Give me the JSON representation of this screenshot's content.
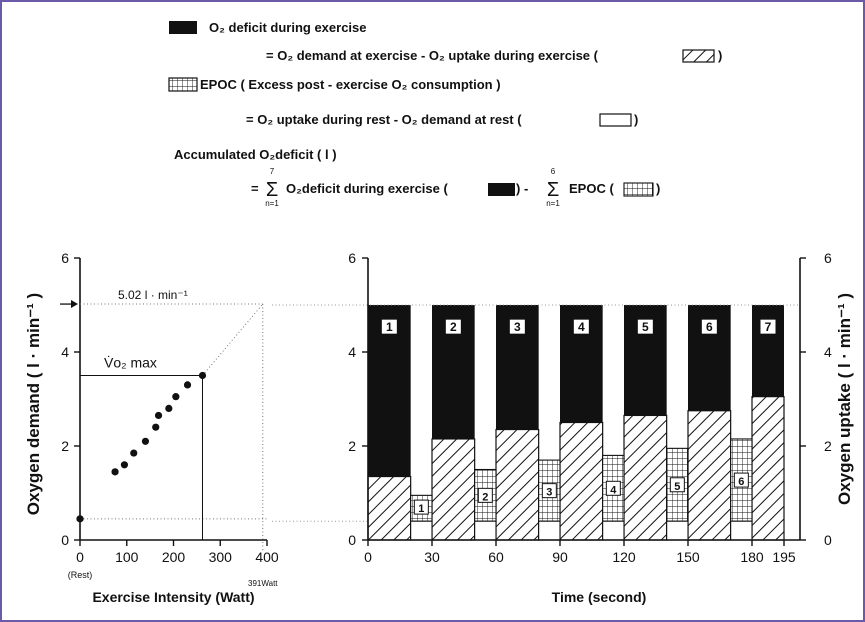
{
  "legend": {
    "deficit_title": "O₂ deficit  during  exercise",
    "deficit_eq": "= O₂ demand at exercise   -  O₂ uptake during exercise  (",
    "epoc_title": "EPOC ( Excess post - exercise  O₂ consumption )",
    "epoc_eq": "= O₂ uptake during rest -  O₂ demand at rest    (",
    "acc_title": "Accumulated O₂deficit   ( l )",
    "acc_eq_a": "=",
    "sum1_top": "7",
    "sum1_bottom": "n=1",
    "acc_eq_b": "O₂deficit during exercise (",
    "acc_eq_c": ")   -",
    "sum2_top": "6",
    "sum2_bottom": "n=1",
    "acc_eq_d": "EPOC (",
    "acc_eq_e": ")",
    "close_paren": ")"
  },
  "colors": {
    "frame": "#6a5aa8",
    "ink": "#111111",
    "grid": "#777777"
  },
  "chart_data": [
    {
      "type": "scatter",
      "xlabel": "Exercise Intensity  (Watt)",
      "ylabel": "Oxygen  demand   ( l · min⁻¹ )",
      "xlim": [
        0,
        400
      ],
      "ylim": [
        0,
        6
      ],
      "xticks": [
        0,
        100,
        200,
        300,
        400
      ],
      "xtick_labels": [
        "0",
        "100",
        "200",
        "300",
        "400"
      ],
      "yticks": [
        0,
        2,
        4,
        6
      ],
      "ytick_labels": [
        "0",
        "2",
        "4",
        "6"
      ],
      "rest_label": "(Rest)",
      "max_label": "391Watt",
      "vo2max_label": "V̇o₂ max",
      "demand_label": "5.02 l · min⁻¹",
      "points": [
        {
          "x": 0,
          "y": 0.45
        },
        {
          "x": 75,
          "y": 1.45
        },
        {
          "x": 95,
          "y": 1.6
        },
        {
          "x": 115,
          "y": 1.85
        },
        {
          "x": 140,
          "y": 2.1
        },
        {
          "x": 162,
          "y": 2.4
        },
        {
          "x": 168,
          "y": 2.65
        },
        {
          "x": 190,
          "y": 2.8
        },
        {
          "x": 205,
          "y": 3.05
        },
        {
          "x": 230,
          "y": 3.3
        },
        {
          "x": 262,
          "y": 3.5
        }
      ],
      "extrapolation": [
        [
          262,
          3.5
        ],
        [
          391,
          5.02
        ]
      ],
      "vo2max": {
        "x": 262,
        "y": 3.5
      },
      "demand": {
        "x": 391,
        "y": 5.02
      },
      "rest_demand": 0.45
    },
    {
      "type": "bar",
      "xlabel": "Time  (second)",
      "ylabel": "Oxygen   uptake   ( l · min⁻¹ )",
      "xlim": [
        0,
        195
      ],
      "ylim": [
        0,
        6
      ],
      "xticks": [
        0,
        30,
        60,
        90,
        120,
        150,
        180,
        195
      ],
      "xtick_labels": [
        "0",
        "30",
        "60",
        "90",
        "120",
        "150",
        "180",
        "195"
      ],
      "yticks": [
        0,
        2,
        4,
        6
      ],
      "ytick_labels": [
        "0",
        "2",
        "4",
        "6"
      ],
      "demand_level": 5.0,
      "rest_level": 0.4,
      "exercise_bouts": [
        {
          "label": "1",
          "start": 0,
          "end": 20,
          "uptake": 1.35
        },
        {
          "label": "2",
          "start": 30,
          "end": 50,
          "uptake": 2.15
        },
        {
          "label": "3",
          "start": 60,
          "end": 80,
          "uptake": 2.35
        },
        {
          "label": "4",
          "start": 90,
          "end": 110,
          "uptake": 2.5
        },
        {
          "label": "5",
          "start": 120,
          "end": 140,
          "uptake": 2.65
        },
        {
          "label": "6",
          "start": 150,
          "end": 170,
          "uptake": 2.75
        },
        {
          "label": "7",
          "start": 180,
          "end": 195,
          "uptake": 3.05
        }
      ],
      "rest_bouts": [
        {
          "label": "1",
          "start": 20,
          "end": 30,
          "uptake": 0.95
        },
        {
          "label": "2",
          "start": 50,
          "end": 60,
          "uptake": 1.5
        },
        {
          "label": "3",
          "start": 80,
          "end": 90,
          "uptake": 1.7
        },
        {
          "label": "4",
          "start": 110,
          "end": 120,
          "uptake": 1.8
        },
        {
          "label": "5",
          "start": 140,
          "end": 150,
          "uptake": 1.95
        },
        {
          "label": "6",
          "start": 170,
          "end": 180,
          "uptake": 2.15
        }
      ]
    }
  ]
}
